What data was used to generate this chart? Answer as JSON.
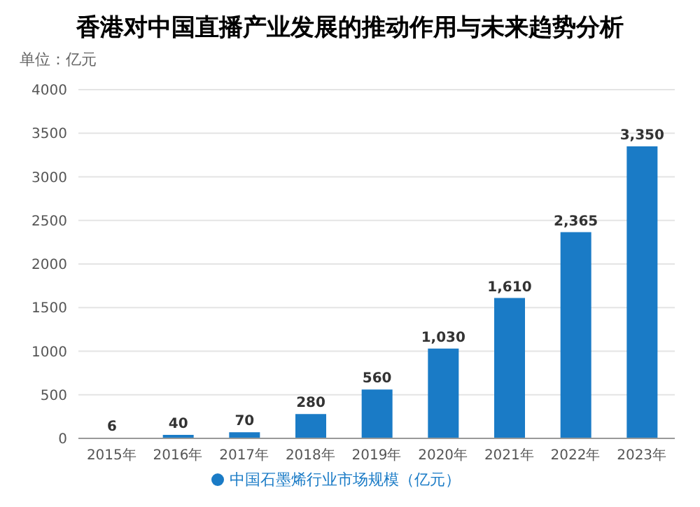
{
  "chart_data": {
    "type": "bar",
    "title": "香港对中国直播产业发展的推动作用与未来趋势分析",
    "ylabel": "单位：亿元",
    "categories": [
      "2015年",
      "2016年",
      "2017年",
      "2018年",
      "2019年",
      "2020年",
      "2021年",
      "2022年",
      "2023年"
    ],
    "series": [
      {
        "name": "中国石墨烯行业市场规模（亿元）",
        "color": "#1a7bc6",
        "values": [
          6,
          40,
          70,
          280,
          560,
          1030,
          1610,
          2365,
          3350
        ],
        "value_labels": [
          "6",
          "40",
          "70",
          "280",
          "560",
          "1,030",
          "1,610",
          "2,365",
          "3,350"
        ]
      }
    ],
    "ylim": [
      0,
      4000
    ],
    "yticks": [
      0,
      500,
      1000,
      1500,
      2000,
      2500,
      3000,
      3500,
      4000
    ],
    "grid": "y",
    "legend": "bottom"
  }
}
